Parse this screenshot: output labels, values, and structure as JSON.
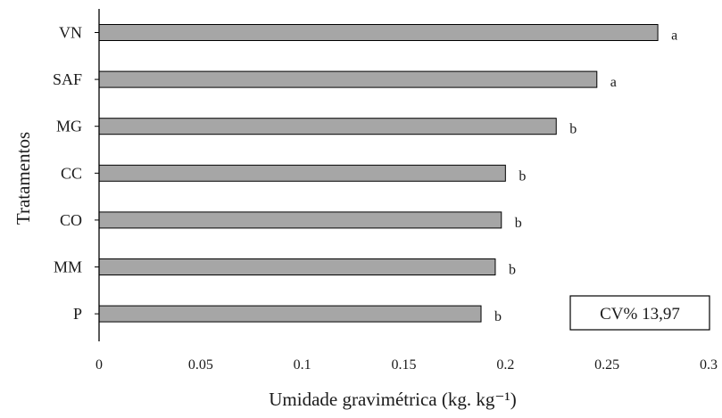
{
  "chart_data": {
    "type": "bar",
    "orientation": "horizontal",
    "categories": [
      "VN",
      "SAF",
      "MG",
      "CC",
      "CO",
      "MM",
      "P"
    ],
    "values": [
      0.275,
      0.245,
      0.225,
      0.2,
      0.198,
      0.195,
      0.188
    ],
    "significance_letters": [
      "a",
      "a",
      "b",
      "b",
      "b",
      "b",
      "b"
    ],
    "xlabel": "Umidade gravimétrica  (kg. kg⁻¹)",
    "ylabel": "Tratamentos",
    "xlim": [
      0,
      0.3
    ],
    "x_ticks": [
      "0",
      "0.05",
      "0.1",
      "0.15",
      "0.2",
      "0.25",
      "0.3"
    ],
    "grid": false,
    "bar_color": "#a6a6a6",
    "bar_edge_color": "#000000"
  },
  "annotation": {
    "cv_text": "CV% 13,97"
  }
}
